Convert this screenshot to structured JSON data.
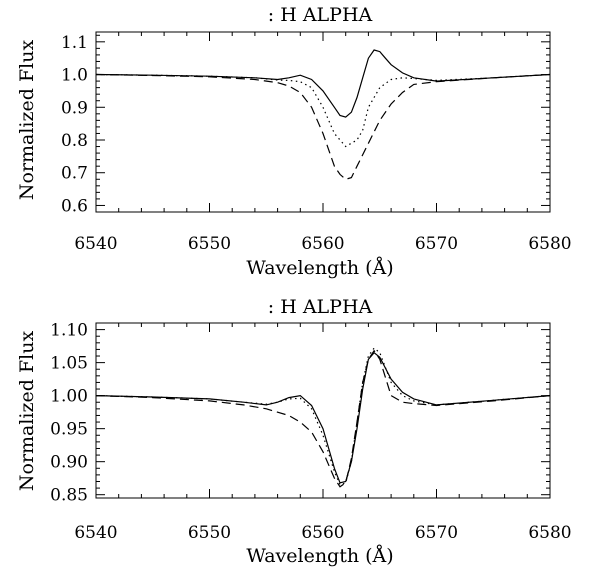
{
  "chart_data": [
    {
      "type": "line",
      "title": ": H ALPHA",
      "xlabel": "Wavelength (Å)",
      "ylabel": "Normalized Flux",
      "xlim": [
        6540,
        6580
      ],
      "ylim": [
        0.58,
        1.13
      ],
      "xticks": [
        "6540",
        "6550",
        "6560",
        "6570",
        "6580"
      ],
      "xtick_values": [
        6540,
        6550,
        6560,
        6570,
        6580
      ],
      "yticks": [
        "0.6",
        "0.7",
        "0.8",
        "0.9",
        "1.0",
        "1.1"
      ],
      "ytick_values": [
        0.6,
        0.7,
        0.8,
        0.9,
        1.0,
        1.1
      ],
      "grid": false,
      "legend": "none",
      "series": [
        {
          "style": "solid",
          "x": [
            6540,
            6545,
            6550,
            6554,
            6556,
            6557,
            6558,
            6559,
            6560,
            6561,
            6561.5,
            6562,
            6562.5,
            6563,
            6563.5,
            6564,
            6564.5,
            6565,
            6565.5,
            6566,
            6567,
            6568,
            6570,
            6575,
            6580
          ],
          "y": [
            1.0,
            0.998,
            0.995,
            0.99,
            0.985,
            0.99,
            0.998,
            0.985,
            0.95,
            0.9,
            0.875,
            0.87,
            0.885,
            0.93,
            0.99,
            1.05,
            1.075,
            1.07,
            1.05,
            1.03,
            1.005,
            0.99,
            0.98,
            0.99,
            1.0
          ]
        },
        {
          "style": "dotted",
          "x": [
            6540,
            6545,
            6550,
            6554,
            6556,
            6557,
            6558,
            6559,
            6560,
            6561,
            6562,
            6563,
            6563.5,
            6564,
            6565,
            6566,
            6567,
            6568,
            6570,
            6575,
            6580
          ],
          "y": [
            1.0,
            0.998,
            0.995,
            0.99,
            0.983,
            0.982,
            0.978,
            0.96,
            0.9,
            0.82,
            0.78,
            0.8,
            0.83,
            0.9,
            0.96,
            0.985,
            0.99,
            0.988,
            0.982,
            0.99,
            1.0
          ]
        },
        {
          "style": "dashed",
          "x": [
            6540,
            6545,
            6550,
            6554,
            6556,
            6557,
            6558,
            6559,
            6560,
            6561,
            6561.5,
            6562,
            6562.5,
            6563,
            6564,
            6565,
            6566,
            6567,
            6568,
            6570,
            6575,
            6580
          ],
          "y": [
            1.0,
            0.997,
            0.993,
            0.985,
            0.975,
            0.965,
            0.945,
            0.9,
            0.82,
            0.72,
            0.695,
            0.68,
            0.685,
            0.72,
            0.79,
            0.86,
            0.91,
            0.945,
            0.97,
            0.978,
            0.99,
            1.0
          ]
        }
      ]
    },
    {
      "type": "line",
      "title": ": H ALPHA",
      "xlabel": "Wavelength (Å)",
      "ylabel": "Normalized Flux",
      "xlim": [
        6540,
        6580
      ],
      "ylim": [
        0.845,
        1.11
      ],
      "xticks": [
        "6540",
        "6550",
        "6560",
        "6570",
        "6580"
      ],
      "xtick_values": [
        6540,
        6550,
        6560,
        6570,
        6580
      ],
      "yticks": [
        "0.85",
        "0.90",
        "0.95",
        "1.00",
        "1.05",
        "1.10"
      ],
      "ytick_values": [
        0.85,
        0.9,
        0.95,
        1.0,
        1.05,
        1.1
      ],
      "grid": false,
      "legend": "none",
      "series": [
        {
          "style": "solid",
          "x": [
            6540,
            6545,
            6550,
            6553,
            6555,
            6556,
            6557,
            6558,
            6559,
            6560,
            6561,
            6561.5,
            6562,
            6562.5,
            6563,
            6563.5,
            6564,
            6564.5,
            6565,
            6566,
            6567,
            6568,
            6570,
            6575,
            6580
          ],
          "y": [
            1.0,
            0.998,
            0.995,
            0.99,
            0.986,
            0.99,
            0.997,
            1.0,
            0.985,
            0.95,
            0.89,
            0.868,
            0.87,
            0.9,
            0.95,
            1.01,
            1.055,
            1.065,
            1.058,
            1.025,
            1.005,
            0.995,
            0.986,
            0.993,
            1.0
          ]
        },
        {
          "style": "dotted",
          "x": [
            6540,
            6545,
            6550,
            6553,
            6555,
            6556,
            6557,
            6558,
            6559,
            6560,
            6561,
            6561.5,
            6562,
            6562.5,
            6563,
            6563.5,
            6564,
            6564.5,
            6565,
            6566,
            6567,
            6568,
            6570,
            6575,
            6580
          ],
          "y": [
            1.0,
            0.998,
            0.995,
            0.99,
            0.987,
            0.99,
            0.995,
            0.996,
            0.98,
            0.94,
            0.885,
            0.865,
            0.868,
            0.9,
            0.96,
            1.02,
            1.06,
            1.072,
            1.065,
            1.02,
            1.0,
            0.992,
            0.986,
            0.993,
            1.0
          ]
        },
        {
          "style": "dashed",
          "x": [
            6540,
            6545,
            6550,
            6553,
            6555,
            6556,
            6557,
            6558,
            6559,
            6560,
            6561,
            6561.5,
            6562,
            6562.5,
            6563,
            6563.5,
            6564,
            6564.5,
            6565,
            6566,
            6567,
            6568,
            6570,
            6575,
            6580
          ],
          "y": [
            1.0,
            0.997,
            0.992,
            0.986,
            0.98,
            0.975,
            0.97,
            0.96,
            0.945,
            0.915,
            0.875,
            0.862,
            0.868,
            0.905,
            0.96,
            1.02,
            1.055,
            1.068,
            1.055,
            1.0,
            0.99,
            0.988,
            0.985,
            0.992,
            1.0
          ]
        }
      ]
    }
  ]
}
